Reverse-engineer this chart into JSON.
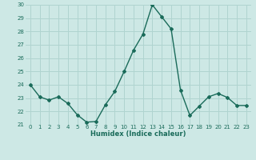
{
  "x": [
    0,
    1,
    2,
    3,
    4,
    5,
    6,
    7,
    8,
    9,
    10,
    11,
    12,
    13,
    14,
    15,
    16,
    17,
    18,
    19,
    20,
    21,
    22,
    23
  ],
  "y": [
    24.0,
    23.1,
    22.85,
    23.1,
    22.6,
    21.75,
    21.2,
    21.25,
    22.5,
    23.5,
    25.0,
    26.6,
    27.8,
    30.0,
    29.1,
    28.2,
    23.6,
    21.7,
    22.4,
    23.1,
    23.35,
    23.05,
    22.45,
    22.45
  ],
  "xlabel": "Humidex (Indice chaleur)",
  "ylim": [
    21,
    30
  ],
  "xlim": [
    -0.5,
    23.5
  ],
  "yticks": [
    21,
    22,
    23,
    24,
    25,
    26,
    27,
    28,
    29,
    30
  ],
  "xticks": [
    0,
    1,
    2,
    3,
    4,
    5,
    6,
    7,
    8,
    9,
    10,
    11,
    12,
    13,
    14,
    15,
    16,
    17,
    18,
    19,
    20,
    21,
    22,
    23
  ],
  "line_color": "#1a6b5a",
  "marker": "D",
  "marker_size": 2.0,
  "bg_color": "#cde8e5",
  "grid_color": "#b0d4d0",
  "tick_label_color": "#1a6b5a",
  "xlabel_color": "#1a6b5a",
  "line_width": 1.0
}
